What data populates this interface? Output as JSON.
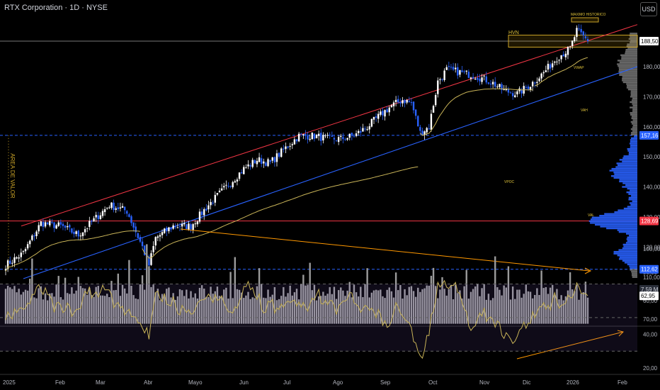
{
  "header": {
    "title": "RTX Corporation · 1D · NYSE",
    "currency": "USD"
  },
  "price_axis": {
    "ticks": [
      "180,00",
      "170,00",
      "160,00",
      "150,00",
      "140,00",
      "130,00",
      "120,00",
      "110,00"
    ]
  },
  "volume_axis": {
    "ticks": [
      "100,00",
      "90,00",
      "80,00",
      "70,00"
    ]
  },
  "rsi_axis": {
    "ticks": [
      "60,00",
      "40,00",
      "20,00"
    ]
  },
  "badges": {
    "last_price": "188,50",
    "vah": "157,16",
    "vpoc": "128,69",
    "val": "112,62",
    "volume": "7,59 M",
    "rsi": "62,95"
  },
  "annotations": {
    "ath": "MAXIMO HISTORICO",
    "hvn": "HVN",
    "vwap": "VWAP",
    "vah": "VAH",
    "vpoc": "VPOC",
    "val": "VAL",
    "value_area": "AREA DE VALOR"
  },
  "time_axis": [
    "2025",
    "Feb",
    "Mar",
    "Abr",
    "Mayo",
    "Jun",
    "Jul",
    "Ago",
    "Sep",
    "Oct",
    "Nov",
    "Dic",
    "2026",
    "Feb"
  ],
  "colors": {
    "up": "#ffffff",
    "down": "#2962ff",
    "red": "#f23645",
    "blue": "#2962ff",
    "vwap": "#c9b458",
    "orange": "#ff9800",
    "volume": "#9b9b9b",
    "profile": "#2962ff",
    "profile_outside": "#aaaaaa"
  },
  "chart_data": {
    "type": "candlestick",
    "symbol": "RTX",
    "price_ylim": [
      108,
      196
    ],
    "monthly_closes": [
      {
        "month": "2025-01",
        "close": 128
      },
      {
        "month": "2025-02",
        "close": 124
      },
      {
        "month": "2025-03",
        "close": 133
      },
      {
        "month": "2025-04",
        "close": 126
      },
      {
        "month": "2025-05",
        "close": 136
      },
      {
        "month": "2025-06",
        "close": 146
      },
      {
        "month": "2025-07",
        "close": 157
      },
      {
        "month": "2025-08",
        "close": 157
      },
      {
        "month": "2025-09",
        "close": 167
      },
      {
        "month": "2025-10",
        "close": 178
      },
      {
        "month": "2025-11",
        "close": 172
      },
      {
        "month": "2025-12",
        "close": 183
      },
      {
        "month": "2026-01",
        "close": 188.5
      }
    ],
    "key_levels": {
      "last_price": 188.5,
      "vah": 157.16,
      "vpoc": 128.69,
      "val": 112.62,
      "hvn_zone": [
        186.5,
        190.5
      ]
    },
    "volume_ylim": [
      68,
      105
    ],
    "volume_last_millions": 7.59,
    "rsi": {
      "last": 62.95,
      "levels": [
        70,
        50,
        30
      ],
      "ylim": [
        15,
        75
      ]
    }
  }
}
